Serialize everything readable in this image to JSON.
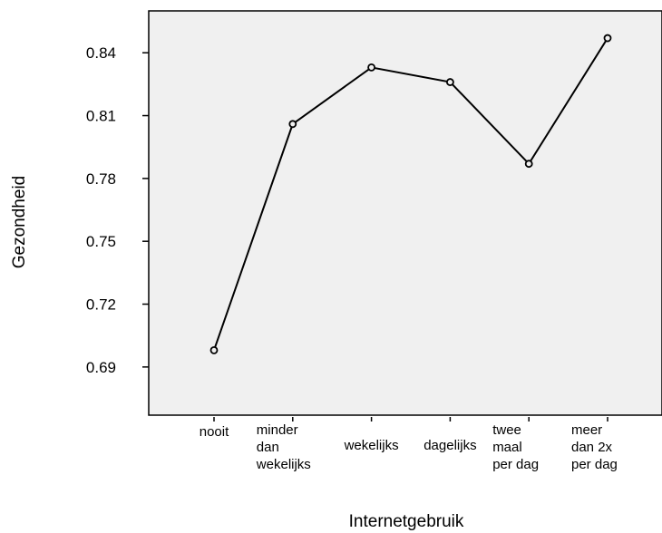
{
  "chart_data": {
    "type": "line",
    "categories": [
      [
        "nooit"
      ],
      [
        "minder",
        "dan",
        "wekelijks"
      ],
      [
        "wekelijks"
      ],
      [
        "dagelijks"
      ],
      [
        "twee",
        "maal",
        "per dag"
      ],
      [
        "meer",
        "dan 2x",
        "per dag"
      ]
    ],
    "series": [
      {
        "values": [
          0.698,
          0.806,
          0.833,
          0.826,
          0.787,
          0.847
        ]
      }
    ],
    "yticks": [
      0.69,
      0.72,
      0.75,
      0.78,
      0.81,
      0.84
    ],
    "ylim": [
      0.667,
      0.86
    ],
    "xlabel": "Internetgebruik",
    "ylabel": "Gezondheid",
    "grid": false,
    "colors": {
      "background": "#f0f0f0",
      "line": "#000000",
      "axis": "#000000"
    }
  }
}
